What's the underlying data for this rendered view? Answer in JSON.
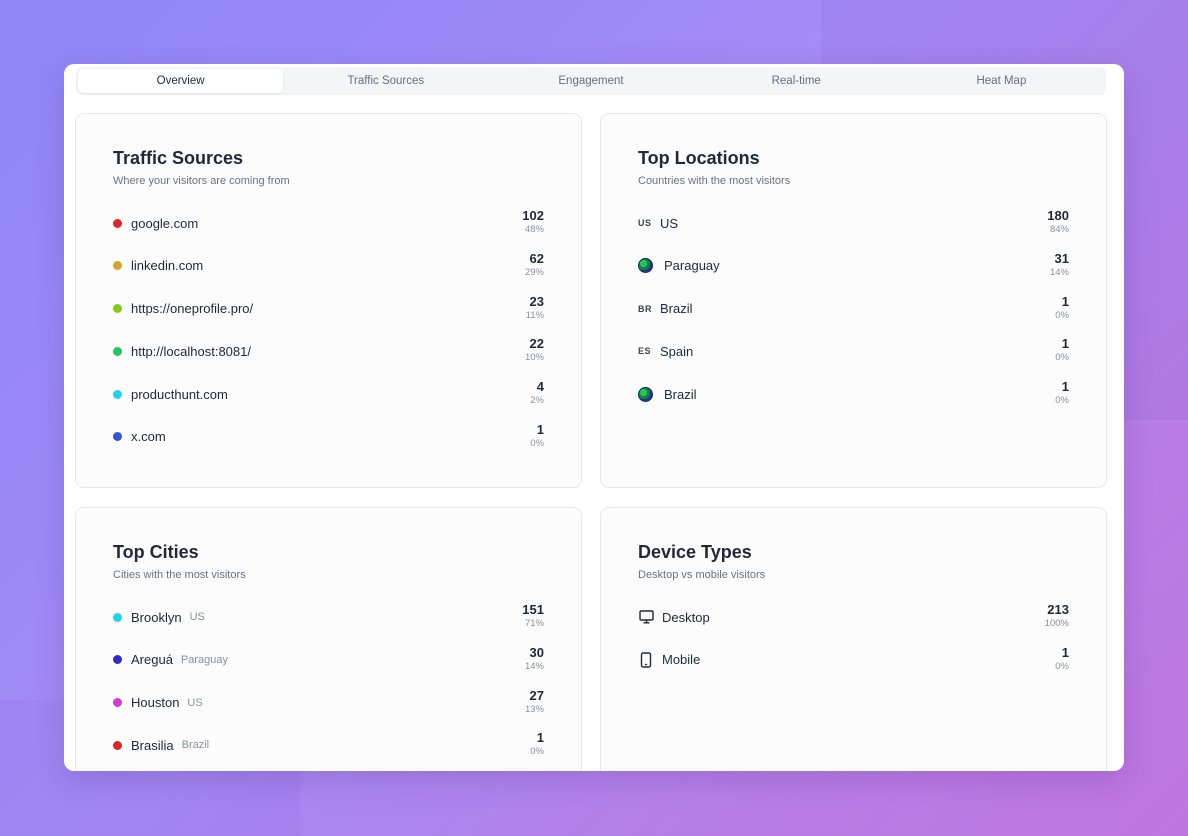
{
  "tabs": [
    "Overview",
    "Traffic Sources",
    "Engagement",
    "Real-time",
    "Heat Map"
  ],
  "active_tab": "Overview",
  "traffic_sources": {
    "title": "Traffic Sources",
    "subtitle": "Where your visitors are coming from",
    "items": [
      {
        "label": "google.com",
        "count": "102",
        "pct": "48%",
        "color": "#dc2626"
      },
      {
        "label": "linkedin.com",
        "count": "62",
        "pct": "29%",
        "color": "#d4a52a"
      },
      {
        "label": "https://oneprofile.pro/",
        "count": "23",
        "pct": "11%",
        "color": "#84cc16"
      },
      {
        "label": "http://localhost:8081/",
        "count": "22",
        "pct": "10%",
        "color": "#22c55e"
      },
      {
        "label": "producthunt.com",
        "count": "4",
        "pct": "2%",
        "color": "#22d3ee"
      },
      {
        "label": "x.com",
        "count": "1",
        "pct": "0%",
        "color": "#2f55d4"
      }
    ]
  },
  "top_locations": {
    "title": "Top Locations",
    "subtitle": "Countries with the most visitors",
    "items": [
      {
        "code": "US",
        "label": "US",
        "count": "180",
        "pct": "84%",
        "icon": "code"
      },
      {
        "code": "",
        "label": "Paraguay",
        "count": "31",
        "pct": "14%",
        "icon": "globe-icon"
      },
      {
        "code": "BR",
        "label": "Brazil",
        "count": "1",
        "pct": "0%",
        "icon": "code"
      },
      {
        "code": "ES",
        "label": "Spain",
        "count": "1",
        "pct": "0%",
        "icon": "code"
      },
      {
        "code": "",
        "label": "Brazil",
        "count": "1",
        "pct": "0%",
        "icon": "globe-icon"
      }
    ]
  },
  "top_cities": {
    "title": "Top Cities",
    "subtitle": "Cities with the most visitors",
    "items": [
      {
        "label": "Brooklyn",
        "country": "US",
        "count": "151",
        "pct": "71%",
        "color": "#22d3ee"
      },
      {
        "label": "Areguá",
        "country": "Paraguay",
        "count": "30",
        "pct": "14%",
        "color": "#2e2bc9"
      },
      {
        "label": "Houston",
        "country": "US",
        "count": "27",
        "pct": "13%",
        "color": "#d63bd0"
      },
      {
        "label": "Brasilia",
        "country": "Brazil",
        "count": "1",
        "pct": "0%",
        "color": "#dc2626"
      }
    ]
  },
  "device_types": {
    "title": "Device Types",
    "subtitle": "Desktop vs mobile visitors",
    "items": [
      {
        "label": "Desktop",
        "count": "213",
        "pct": "100%",
        "icon": "desktop-icon"
      },
      {
        "label": "Mobile",
        "count": "1",
        "pct": "0%",
        "icon": "mobile-icon"
      }
    ]
  }
}
